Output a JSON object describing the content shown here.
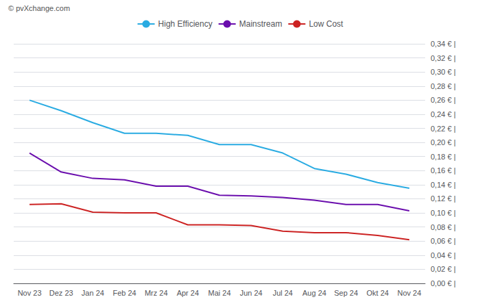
{
  "chart_data": {
    "type": "line",
    "annotations": [
      "© pvXchange.com"
    ],
    "categories": [
      "Nov 23",
      "Dez 23",
      "Jan 24",
      "Feb 24",
      "Mrz 24",
      "Apr 24",
      "Mai 24",
      "Jun 24",
      "Jul 24",
      "Aug 24",
      "Sep 24",
      "Okt 24",
      "Nov 24"
    ],
    "series": [
      {
        "name": "High Efficiency",
        "color": "#29ABE2",
        "values": [
          0.26,
          0.245,
          0.228,
          0.213,
          0.213,
          0.21,
          0.197,
          0.197,
          0.185,
          0.163,
          0.155,
          0.143,
          0.135
        ]
      },
      {
        "name": "Mainstream",
        "color": "#6A0DAD",
        "values": [
          0.185,
          0.158,
          0.149,
          0.147,
          0.138,
          0.138,
          0.125,
          0.124,
          0.122,
          0.118,
          0.112,
          0.112,
          0.103
        ]
      },
      {
        "name": "Low Cost",
        "color": "#CC2222",
        "values": [
          0.112,
          0.113,
          0.101,
          0.1,
          0.1,
          0.083,
          0.083,
          0.082,
          0.074,
          0.072,
          0.072,
          0.068,
          0.062
        ]
      }
    ],
    "ylim": [
      0,
      0.34
    ],
    "yticks": [
      {
        "value": 0,
        "label": "0,00 € |"
      },
      {
        "value": 0.02,
        "label": "0,02 € |"
      },
      {
        "value": 0.04,
        "label": "0,04 € |"
      },
      {
        "value": 0.06,
        "label": "0,06 € |"
      },
      {
        "value": 0.08,
        "label": "0,08 € |"
      },
      {
        "value": 0.1,
        "label": "0,10 € |"
      },
      {
        "value": 0.12,
        "label": "0,12 € |"
      },
      {
        "value": 0.14,
        "label": "0,14 € |"
      },
      {
        "value": 0.16,
        "label": "0,16 € |"
      },
      {
        "value": 0.18,
        "label": "0,18 € |"
      },
      {
        "value": 0.2,
        "label": "0,20 € |"
      },
      {
        "value": 0.22,
        "label": "0,22 € |"
      },
      {
        "value": 0.24,
        "label": "0,24 € |"
      },
      {
        "value": 0.26,
        "label": "0,26 € |"
      },
      {
        "value": 0.28,
        "label": "0,28 € |"
      },
      {
        "value": 0.3,
        "label": "0,30 € |"
      },
      {
        "value": 0.32,
        "label": "0,32 € |"
      },
      {
        "value": 0.34,
        "label": "0,34 € |"
      }
    ],
    "grid": true,
    "legend": "top"
  }
}
